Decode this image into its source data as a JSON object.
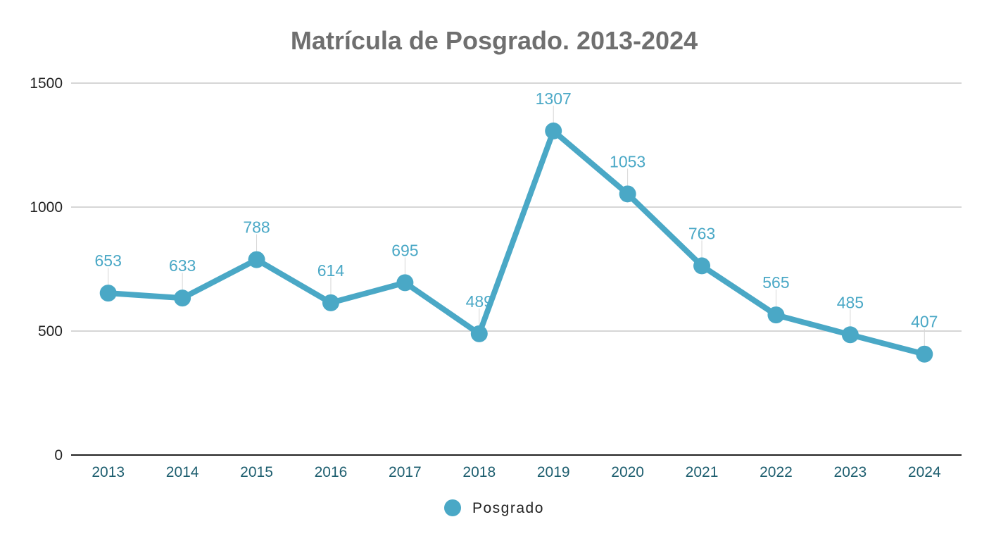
{
  "chart_data": {
    "type": "line",
    "title": "Matrícula de Posgrado. 2013-2024",
    "xlabel": "",
    "ylabel": "",
    "categories": [
      "2013",
      "2014",
      "2015",
      "2016",
      "2017",
      "2018",
      "2019",
      "2020",
      "2021",
      "2022",
      "2023",
      "2024"
    ],
    "series": [
      {
        "name": "Posgrado",
        "values": [
          653,
          633,
          788,
          614,
          695,
          489,
          1307,
          1053,
          763,
          565,
          485,
          407
        ],
        "color": "#4aa8c6"
      }
    ],
    "ylim": [
      0,
      1500
    ],
    "y_ticks": [
      0,
      500,
      1000,
      1500
    ],
    "grid": true,
    "legend_position": "bottom",
    "data_labels": true
  }
}
